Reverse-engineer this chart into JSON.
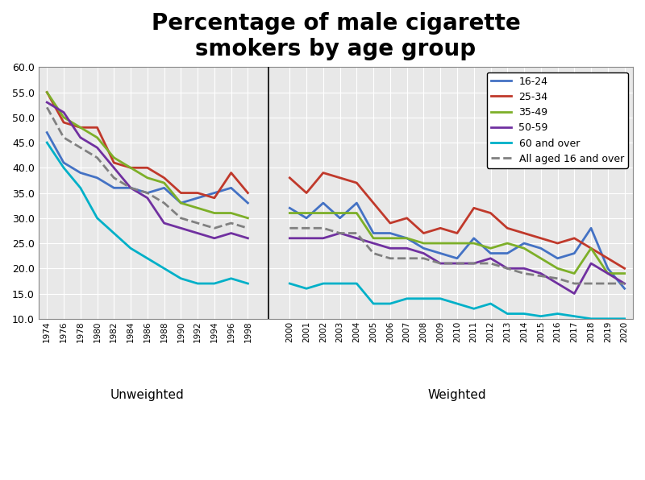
{
  "title": "Percentage of male cigarette\nsmokers by age group",
  "title_fontsize": 20,
  "background_color": "#ffffff",
  "plot_background": "#e8e8e8",
  "ylim": [
    10.0,
    60.0
  ],
  "yticks": [
    10.0,
    15.0,
    20.0,
    25.0,
    30.0,
    35.0,
    40.0,
    45.0,
    50.0,
    55.0,
    60.0
  ],
  "unweighted_label": "Unweighted",
  "weighted_label": "Weighted",
  "unweighted_years": [
    1974,
    1976,
    1978,
    1980,
    1982,
    1984,
    1986,
    1988,
    1990,
    1992,
    1994,
    1996,
    1998
  ],
  "weighted_years": [
    2000,
    2001,
    2002,
    2003,
    2004,
    2005,
    2006,
    2007,
    2008,
    2009,
    2010,
    2011,
    2012,
    2013,
    2014,
    2015,
    2016,
    2017,
    2018,
    2019,
    2020
  ],
  "series_order": [
    "age_16_24",
    "age_25_34",
    "age_35_49",
    "age_50_59",
    "age_60_over",
    "all_16_over"
  ],
  "series": {
    "age_16_24": {
      "label": "16-24",
      "color": "#4472c4",
      "dash": "solid",
      "uw_values": [
        47.0,
        41.0,
        39.0,
        38.0,
        36.0,
        36.0,
        35.0,
        36.0,
        33.0,
        34.0,
        35.0,
        36.0,
        33.0
      ],
      "wt_values": [
        32.0,
        30.0,
        33.0,
        30.0,
        33.0,
        27.0,
        27.0,
        26.0,
        24.0,
        23.0,
        22.0,
        26.0,
        23.0,
        23.0,
        25.0,
        24.0,
        22.0,
        23.0,
        28.0,
        20.0,
        16.0
      ]
    },
    "age_25_34": {
      "label": "25-34",
      "color": "#c0392b",
      "dash": "solid",
      "uw_values": [
        55.0,
        49.0,
        48.0,
        48.0,
        41.0,
        40.0,
        40.0,
        38.0,
        35.0,
        35.0,
        34.0,
        39.0,
        35.0
      ],
      "wt_values": [
        38.0,
        35.0,
        39.0,
        38.0,
        37.0,
        33.0,
        29.0,
        30.0,
        27.0,
        28.0,
        27.0,
        32.0,
        31.0,
        28.0,
        27.0,
        26.0,
        25.0,
        26.0,
        24.0,
        22.0,
        20.0
      ]
    },
    "age_35_49": {
      "label": "35-49",
      "color": "#7daf28",
      "dash": "solid",
      "uw_values": [
        55.0,
        50.0,
        48.0,
        46.0,
        42.0,
        40.0,
        38.0,
        37.0,
        33.0,
        32.0,
        31.0,
        31.0,
        30.0
      ],
      "wt_values": [
        31.0,
        31.0,
        31.0,
        31.0,
        31.0,
        26.0,
        26.0,
        26.0,
        25.0,
        25.0,
        25.0,
        25.0,
        24.0,
        25.0,
        24.0,
        22.0,
        20.0,
        19.0,
        24.0,
        19.0,
        19.0
      ]
    },
    "age_50_59": {
      "label": "50-59",
      "color": "#7030a0",
      "dash": "solid",
      "uw_values": [
        53.0,
        51.0,
        46.0,
        44.0,
        40.0,
        36.0,
        34.0,
        29.0,
        28.0,
        27.0,
        26.0,
        27.0,
        26.0
      ],
      "wt_values": [
        26.0,
        26.0,
        26.0,
        27.0,
        26.0,
        25.0,
        24.0,
        24.0,
        23.0,
        21.0,
        21.0,
        21.0,
        22.0,
        20.0,
        20.0,
        19.0,
        17.0,
        15.0,
        21.0,
        19.0,
        17.0
      ]
    },
    "age_60_over": {
      "label": "60 and over",
      "color": "#00b0c8",
      "dash": "solid",
      "uw_values": [
        45.0,
        40.0,
        36.0,
        30.0,
        27.0,
        24.0,
        22.0,
        20.0,
        18.0,
        17.0,
        17.0,
        18.0,
        17.0
      ],
      "wt_values": [
        17.0,
        16.0,
        17.0,
        17.0,
        17.0,
        13.0,
        13.0,
        14.0,
        14.0,
        14.0,
        13.0,
        12.0,
        13.0,
        11.0,
        11.0,
        10.5,
        11.0,
        10.5,
        10.0,
        10.0,
        10.0
      ]
    },
    "all_16_over": {
      "label": "All aged 16 and over",
      "color": "#808080",
      "dash": "dashed",
      "uw_values": [
        52.0,
        46.0,
        44.0,
        42.0,
        38.0,
        36.0,
        35.0,
        33.0,
        30.0,
        29.0,
        28.0,
        29.0,
        28.0
      ],
      "wt_values": [
        28.0,
        28.0,
        28.0,
        27.0,
        27.0,
        23.0,
        22.0,
        22.0,
        22.0,
        21.0,
        21.0,
        21.0,
        21.0,
        20.0,
        19.0,
        18.5,
        18.0,
        17.0,
        17.0,
        17.0,
        17.0
      ]
    }
  }
}
